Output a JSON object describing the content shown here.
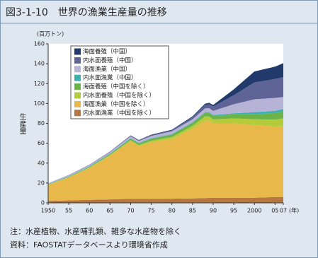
{
  "chart_data": {
    "type": "stacked-area",
    "title": "図3-1-10　世界の漁業生産量の推移",
    "y_unit": "(百万トン)",
    "y_label": "生産量",
    "x_unit": "(年)",
    "notes": [
      "注：水産植物、水産哺乳類、雑多な水産物を除く",
      "資料：FAOSTATデータベースより環境省作成"
    ],
    "x": [
      1950,
      1955,
      1960,
      1965,
      1970,
      1972,
      1975,
      1980,
      1985,
      1988,
      1989,
      1990,
      1995,
      2000,
      2005,
      2007
    ],
    "xlim": [
      1950,
      2007
    ],
    "xticks": [
      {
        "value": 1950,
        "label": "1950"
      },
      {
        "value": 1955,
        "label": "55"
      },
      {
        "value": 1960,
        "label": "60"
      },
      {
        "value": 1965,
        "label": "65"
      },
      {
        "value": 1970,
        "label": "70"
      },
      {
        "value": 1975,
        "label": "75"
      },
      {
        "value": 1980,
        "label": "80"
      },
      {
        "value": 1985,
        "label": "85"
      },
      {
        "value": 1990,
        "label": "90"
      },
      {
        "value": 1995,
        "label": "95"
      },
      {
        "value": 2000,
        "label": "2000"
      },
      {
        "value": 2005,
        "label": "05"
      },
      {
        "value": 2007,
        "label": "07"
      }
    ],
    "ylim": [
      0,
      160
    ],
    "yticks": [
      0,
      20,
      40,
      60,
      80,
      100,
      120,
      140,
      160
    ],
    "series": [
      {
        "name": "海面養殖（中国）",
        "color": "#1f3a6b",
        "values": [
          0,
          0.1,
          0.1,
          0.2,
          0.3,
          0.3,
          0.5,
          0.6,
          0.8,
          1.2,
          1.4,
          1.5,
          6,
          11,
          12.5,
          14
        ]
      },
      {
        "name": "内水面養殖（中国）",
        "color": "#5e6496",
        "values": [
          0.1,
          0.2,
          0.3,
          0.4,
          0.6,
          0.7,
          0.8,
          1,
          2.2,
          3.5,
          4,
          4.5,
          9,
          17,
          19,
          20
        ]
      },
      {
        "name": "海面漁業（中国）",
        "color": "#b7b3d6",
        "values": [
          0.8,
          1,
          1.2,
          1.5,
          2,
          2,
          2.3,
          2.8,
          3,
          3.8,
          4,
          4.2,
          9,
          13,
          13,
          12
        ]
      },
      {
        "name": "内水面漁業（中国）",
        "color": "#3fb0b0",
        "values": [
          0.2,
          0.3,
          0.4,
          0.4,
          0.5,
          0.5,
          0.5,
          0.5,
          0.6,
          0.8,
          0.8,
          0.8,
          1.2,
          2,
          2.3,
          2.5
        ]
      },
      {
        "name": "海面養殖（中国を除く）",
        "color": "#6cb34a",
        "values": [
          0.4,
          0.5,
          0.7,
          1,
          1.5,
          1.6,
          2,
          2.5,
          3,
          3.5,
          3.5,
          3.5,
          4,
          5,
          6.5,
          7
        ]
      },
      {
        "name": "内水面養殖（中国を除く）",
        "color": "#b5cc3a",
        "values": [
          0.3,
          0.4,
          0.6,
          0.8,
          1,
          1.2,
          1.5,
          2,
          3,
          4,
          4,
          4,
          5,
          6,
          7,
          8
        ]
      },
      {
        "name": "海面漁業（中国を除く）",
        "color": "#e8b84a",
        "values": [
          16,
          23,
          32,
          44,
          58,
          53,
          57,
          60,
          70,
          78,
          78,
          75,
          75,
          73,
          71,
          71
        ]
      },
      {
        "name": "内水面漁業（中国を除く）",
        "color": "#b5773f",
        "values": [
          2,
          2.5,
          3,
          3.5,
          4,
          4,
          4,
          4.2,
          4.5,
          4.8,
          5,
          5,
          5,
          5.2,
          5.8,
          6
        ]
      }
    ]
  }
}
